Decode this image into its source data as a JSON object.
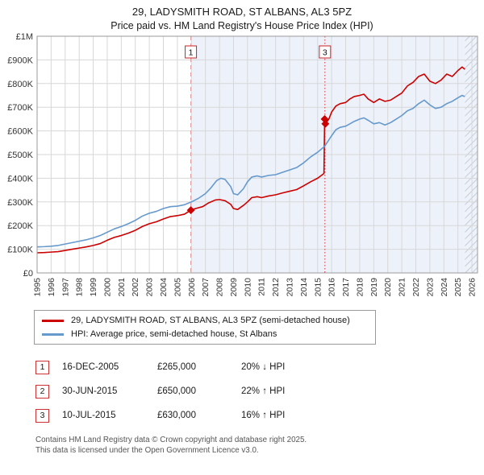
{
  "chart_data": {
    "type": "line",
    "title": "29, LADYSMITH ROAD, ST ALBANS, AL3 5PZ",
    "subtitle": "Price paid vs. HM Land Registry's House Price Index (HPI)",
    "xlabel": "",
    "ylabel": "",
    "y_unit": "thousands_gbp",
    "xlim": [
      1995,
      2026.4
    ],
    "ylim": [
      0,
      1000
    ],
    "grid": true,
    "legend_position": "bottom",
    "x_ticks": [
      1995,
      1996,
      1997,
      1998,
      1999,
      2000,
      2001,
      2002,
      2003,
      2004,
      2005,
      2006,
      2007,
      2008,
      2009,
      2010,
      2011,
      2012,
      2013,
      2014,
      2015,
      2016,
      2017,
      2018,
      2019,
      2020,
      2021,
      2022,
      2023,
      2024,
      2025,
      2026
    ],
    "y_ticks": [
      0,
      100,
      200,
      300,
      400,
      500,
      600,
      700,
      800,
      900,
      1000
    ],
    "y_tick_labels": [
      "£0",
      "£100K",
      "£200K",
      "£300K",
      "£400K",
      "£500K",
      "£600K",
      "£700K",
      "£800K",
      "£900K",
      "£1M"
    ],
    "series": [
      {
        "name": "29, LADYSMITH ROAD, ST ALBANS, AL3 5PZ (semi-detached house)",
        "color": "#cc0000",
        "x": [
          1995,
          1995.5,
          1996,
          1996.5,
          1997,
          1997.5,
          1998,
          1998.5,
          1999,
          1999.5,
          2000,
          2000.5,
          2001,
          2001.5,
          2002,
          2002.5,
          2003,
          2003.5,
          2004,
          2004.5,
          2005,
          2005.5,
          2005.96,
          2006.3,
          2006.8,
          2007.2,
          2007.7,
          2008,
          2008.4,
          2008.8,
          2009,
          2009.3,
          2009.7,
          2010,
          2010.3,
          2010.7,
          2011,
          2011.5,
          2012,
          2012.5,
          2013,
          2013.5,
          2014,
          2014.5,
          2015,
          2015.45,
          2015.5,
          2015.55,
          2015.8,
          2016,
          2016.3,
          2016.6,
          2017,
          2017.3,
          2017.6,
          2018,
          2018.3,
          2018.6,
          2019,
          2019.4,
          2019.8,
          2020.2,
          2020.6,
          2021,
          2021.4,
          2021.8,
          2022.2,
          2022.6,
          2023,
          2023.4,
          2023.8,
          2024.2,
          2024.6,
          2025,
          2025.3,
          2025.5
        ],
        "y": [
          85,
          86,
          88,
          90,
          95,
          100,
          105,
          110,
          116,
          124,
          138,
          150,
          158,
          168,
          180,
          196,
          208,
          216,
          228,
          238,
          242,
          248,
          265,
          272,
          280,
          295,
          308,
          310,
          305,
          290,
          272,
          268,
          285,
          300,
          318,
          322,
          318,
          325,
          330,
          338,
          345,
          352,
          368,
          385,
          400,
          420,
          650,
          630,
          650,
          680,
          705,
          715,
          720,
          735,
          745,
          750,
          755,
          735,
          720,
          735,
          725,
          730,
          745,
          760,
          790,
          805,
          830,
          840,
          810,
          800,
          815,
          840,
          830,
          855,
          870,
          860
        ]
      },
      {
        "name": "HPI: Average price, semi-detached house, St Albans",
        "color": "#6699cc",
        "x": [
          1995,
          1995.5,
          1996,
          1996.5,
          1997,
          1997.5,
          1998,
          1998.5,
          1999,
          1999.5,
          2000,
          2000.5,
          2001,
          2001.5,
          2002,
          2002.5,
          2003,
          2003.5,
          2004,
          2004.5,
          2005,
          2005.5,
          2006,
          2006.5,
          2007,
          2007.4,
          2007.8,
          2008.1,
          2008.4,
          2008.8,
          2009,
          2009.3,
          2009.7,
          2010,
          2010.3,
          2010.7,
          2011,
          2011.5,
          2012,
          2012.5,
          2013,
          2013.5,
          2014,
          2014.5,
          2015,
          2015.5,
          2016,
          2016.3,
          2016.6,
          2017,
          2017.3,
          2017.6,
          2018,
          2018.3,
          2018.6,
          2019,
          2019.4,
          2019.8,
          2020.2,
          2020.6,
          2021,
          2021.4,
          2021.8,
          2022.2,
          2022.6,
          2023,
          2023.4,
          2023.8,
          2024.2,
          2024.6,
          2025,
          2025.3,
          2025.5
        ],
        "y": [
          110,
          111,
          113,
          116,
          122,
          128,
          134,
          140,
          148,
          158,
          172,
          186,
          196,
          208,
          222,
          240,
          252,
          260,
          272,
          280,
          282,
          288,
          300,
          315,
          335,
          360,
          390,
          400,
          395,
          365,
          335,
          330,
          355,
          385,
          405,
          410,
          405,
          412,
          415,
          425,
          435,
          445,
          465,
          490,
          510,
          535,
          580,
          605,
          615,
          620,
          630,
          640,
          650,
          655,
          645,
          630,
          635,
          625,
          635,
          650,
          665,
          685,
          695,
          715,
          730,
          710,
          695,
          700,
          715,
          725,
          740,
          750,
          745
        ]
      }
    ],
    "events": [
      {
        "n": "1",
        "x": 2005.96,
        "style": "dashed",
        "color": "#dd9999"
      },
      {
        "n": "3",
        "x": 2015.52,
        "style": "dotted",
        "color": "#ee2222"
      }
    ],
    "markers": [
      {
        "x": 2005.96,
        "y": 265
      },
      {
        "x": 2015.5,
        "y": 650
      },
      {
        "x": 2015.55,
        "y": 630
      }
    ],
    "marker_color": "#cc0000",
    "shaded_region": [
      2005.96,
      2025.5
    ],
    "shade_color": "#edf2fa",
    "hatch_region": [
      2025.5,
      2026.4
    ]
  },
  "transactions": [
    {
      "n": "1",
      "date": "16-DEC-2005",
      "price": "£265,000",
      "hpi": "20% ↓ HPI"
    },
    {
      "n": "2",
      "date": "30-JUN-2015",
      "price": "£650,000",
      "hpi": "22% ↑ HPI"
    },
    {
      "n": "3",
      "date": "10-JUL-2015",
      "price": "£630,000",
      "hpi": "16% ↑ HPI"
    }
  ],
  "footer": {
    "line1": "Contains HM Land Registry data © Crown copyright and database right 2025.",
    "line2": "This data is licensed under the Open Government Licence v3.0."
  }
}
